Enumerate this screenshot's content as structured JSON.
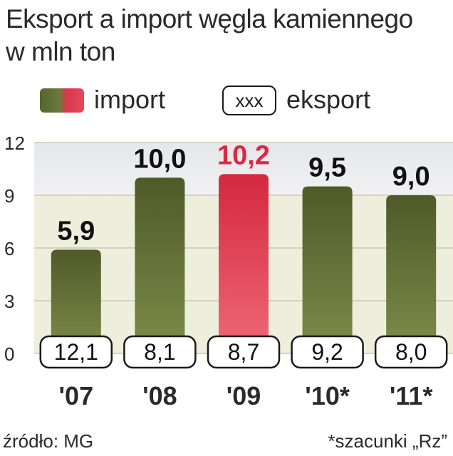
{
  "title_line1": "Eksport a import węgla kamiennego",
  "title_line2": "w mln ton",
  "legend": {
    "import_label": "import",
    "export_box": "xxx",
    "export_label": "eksport"
  },
  "footer": {
    "source": "źródło: MG",
    "note": "*szacunki „Rz”"
  },
  "colors": {
    "import_bar": "#5e6b34",
    "highlight_bar": "#e03a4c",
    "highlight_label": "#d92a44",
    "label": "#111111"
  },
  "chart_data": {
    "type": "bar",
    "categories": [
      "'07",
      "'08",
      "'09",
      "'10*",
      "'11*"
    ],
    "yticks": [
      "0",
      "3",
      "6",
      "9",
      "12"
    ],
    "ylim": [
      0,
      12
    ],
    "grid": true,
    "series": [
      {
        "name": "import",
        "values": [
          5.9,
          10.0,
          10.2,
          9.5,
          9.0
        ],
        "labels": [
          "5,9",
          "10,0",
          "10,2",
          "9,5",
          "9,0"
        ]
      },
      {
        "name": "eksport",
        "values": [
          12.1,
          8.1,
          8.7,
          9.2,
          8.0
        ],
        "labels": [
          "12,1",
          "8,1",
          "8,7",
          "9,2",
          "8,0"
        ]
      }
    ],
    "highlight_index": 2
  }
}
